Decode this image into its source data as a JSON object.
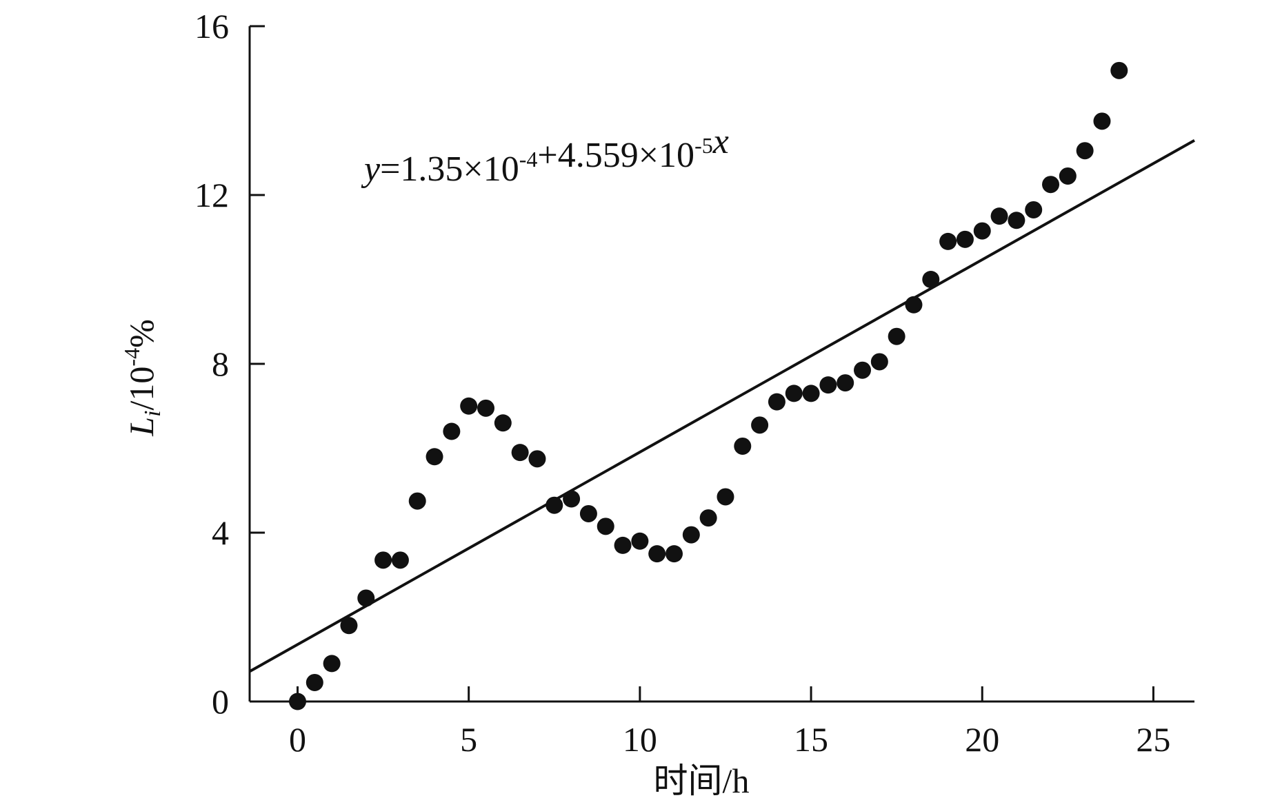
{
  "chart_data": {
    "type": "scatter",
    "xlabel": "时间/h",
    "ylabel": "Li/10⁻⁴%",
    "xlim": [
      -1.4,
      26.2
    ],
    "ylim": [
      0,
      16
    ],
    "xticks": [
      0,
      5,
      10,
      15,
      20,
      25
    ],
    "yticks": [
      0,
      4,
      8,
      12,
      16
    ],
    "grid": false,
    "legend": "none",
    "annotation": "y=1.35×10⁻⁴+4.559×10⁻⁵x",
    "fit_line": {
      "intercept": 1.35,
      "slope": 0.4559
    },
    "series": [
      {
        "points": [
          [
            0,
            0
          ],
          [
            0.5,
            0.45
          ],
          [
            1,
            0.9
          ],
          [
            1.5,
            1.8
          ],
          [
            2,
            2.45
          ],
          [
            2.5,
            3.35
          ],
          [
            3,
            3.35
          ],
          [
            3.5,
            4.75
          ],
          [
            4,
            5.8
          ],
          [
            4.5,
            6.4
          ],
          [
            5,
            7.0
          ],
          [
            5.5,
            6.95
          ],
          [
            6,
            6.6
          ],
          [
            6.5,
            5.9
          ],
          [
            7,
            5.75
          ],
          [
            7.5,
            4.65
          ],
          [
            8,
            4.8
          ],
          [
            8.5,
            4.45
          ],
          [
            9,
            4.15
          ],
          [
            9.5,
            3.7
          ],
          [
            10,
            3.8
          ],
          [
            10.5,
            3.5
          ],
          [
            11,
            3.5
          ],
          [
            11.5,
            3.95
          ],
          [
            12,
            4.35
          ],
          [
            12.5,
            4.85
          ],
          [
            13,
            6.05
          ],
          [
            13.5,
            6.55
          ],
          [
            14,
            7.1
          ],
          [
            14.5,
            7.3
          ],
          [
            15,
            7.3
          ],
          [
            15.5,
            7.5
          ],
          [
            16,
            7.55
          ],
          [
            16.5,
            7.85
          ],
          [
            17,
            8.05
          ],
          [
            17.5,
            8.65
          ],
          [
            18,
            9.4
          ],
          [
            18.5,
            10.0
          ],
          [
            19,
            10.9
          ],
          [
            19.5,
            10.95
          ],
          [
            20,
            11.15
          ],
          [
            20.5,
            11.5
          ],
          [
            21,
            11.4
          ],
          [
            21.5,
            11.65
          ],
          [
            22,
            12.25
          ],
          [
            22.5,
            12.45
          ],
          [
            23,
            13.05
          ],
          [
            23.5,
            13.75
          ],
          [
            24,
            14.95
          ]
        ]
      }
    ]
  }
}
